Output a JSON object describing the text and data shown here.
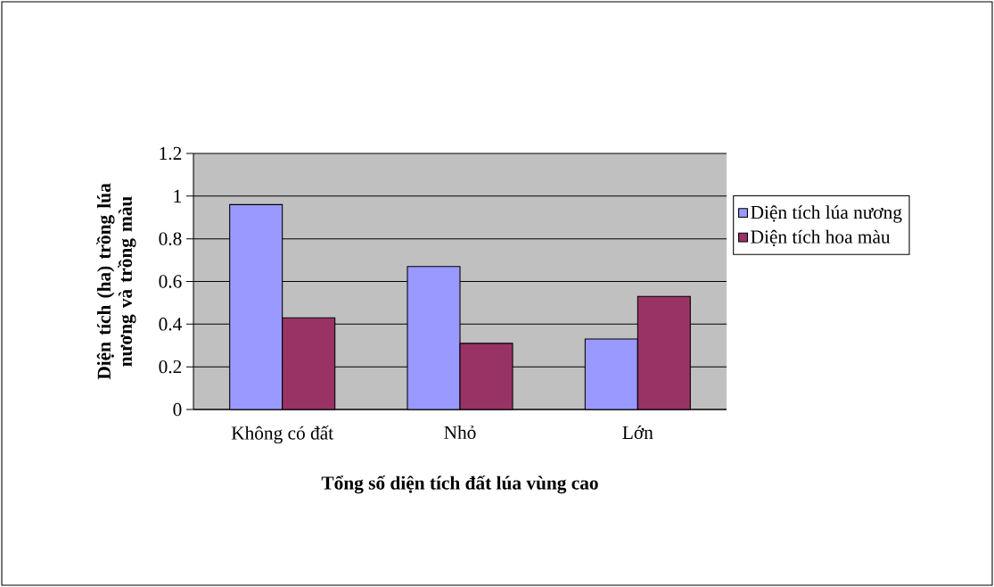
{
  "chart_data": {
    "type": "bar",
    "categories": [
      "Không có đất",
      "Nhỏ",
      "Lớn"
    ],
    "series": [
      {
        "name": "Diện tích lúa nương",
        "color": "#9999ff",
        "values": [
          0.96,
          0.67,
          0.33
        ]
      },
      {
        "name": "Diện tích hoa màu",
        "color": "#993366",
        "values": [
          0.43,
          0.31,
          0.53
        ]
      }
    ],
    "xlabel": "Tổng số diện tích đất lúa vùng cao",
    "ylabel": "Diện tích (ha) trồng lúa nương và trồng màu",
    "ylim": [
      0,
      1.2
    ],
    "yticks": [
      0,
      0.2,
      0.4,
      0.6,
      0.8,
      1,
      1.2
    ],
    "grid": "y",
    "legend": "right"
  }
}
